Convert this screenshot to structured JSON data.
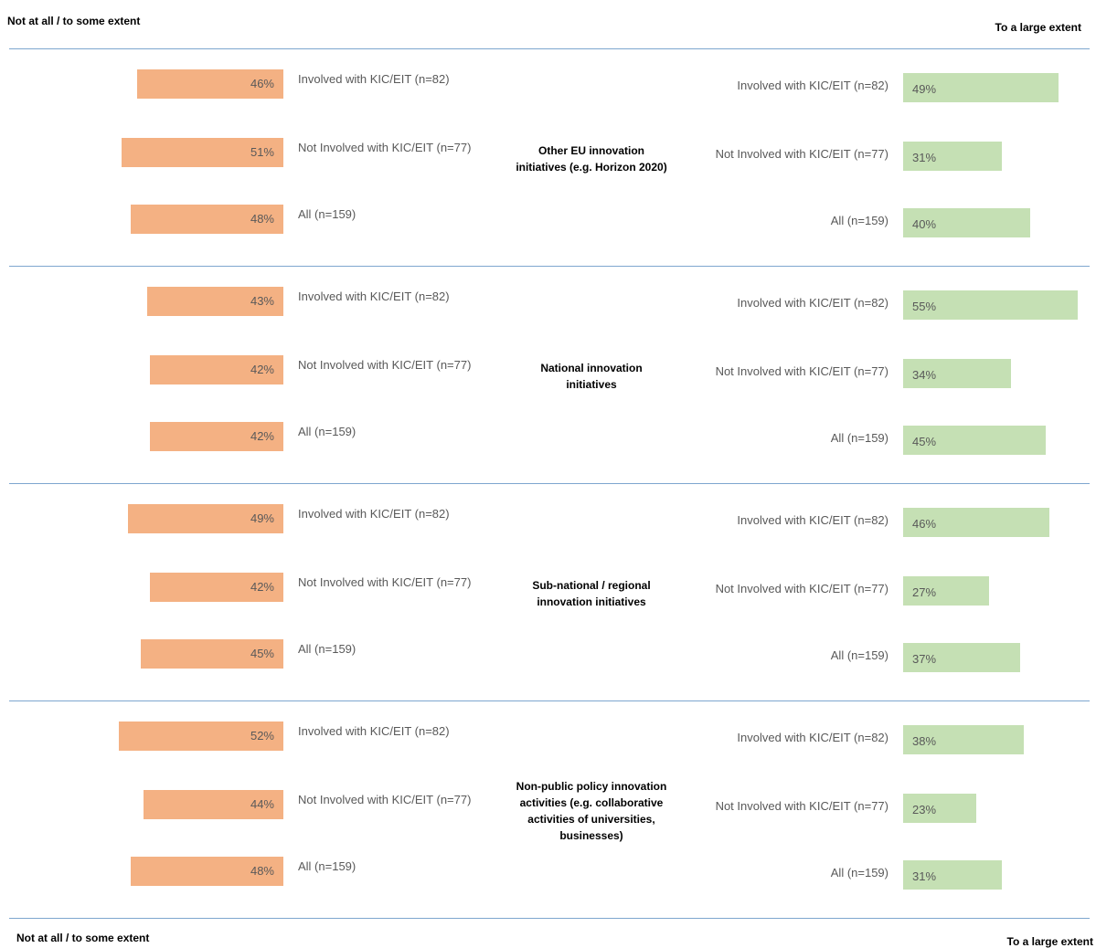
{
  "header": {
    "left_label": "Not at all / to some extent",
    "right_label": "To a large extent"
  },
  "footer": {
    "left_label": "Not at all / to some extent",
    "right_label": "To a large extent"
  },
  "colors": {
    "left_bar": "#f4b183",
    "right_bar": "#c5e0b4",
    "divider": "#7ea6cf"
  },
  "chart_data": {
    "type": "bar",
    "orientation": "diverging-horizontal",
    "series": [
      {
        "name": "Not at all / to some extent",
        "side": "left"
      },
      {
        "name": "To a large extent",
        "side": "right"
      }
    ],
    "categories": [
      {
        "label": "Other EU innovation initiatives (e.g. Horizon 2020)",
        "rows": [
          {
            "group": "Involved with KIC/EIT (n=82)",
            "left": 46,
            "right": 49
          },
          {
            "group": "Not Involved with KIC/EIT (n=77)",
            "left": 51,
            "right": 31
          },
          {
            "group": "All (n=159)",
            "left": 48,
            "right": 40
          }
        ]
      },
      {
        "label": "National innovation initiatives",
        "rows": [
          {
            "group": "Involved with KIC/EIT (n=82)",
            "left": 43,
            "right": 55
          },
          {
            "group": "Not Involved with KIC/EIT (n=77)",
            "left": 42,
            "right": 34
          },
          {
            "group": "All (n=159)",
            "left": 42,
            "right": 45
          }
        ]
      },
      {
        "label": "Sub-national / regional innovation initiatives",
        "rows": [
          {
            "group": "Involved with KIC/EIT (n=82)",
            "left": 49,
            "right": 46
          },
          {
            "group": "Not Involved with KIC/EIT (n=77)",
            "left": 42,
            "right": 27
          },
          {
            "group": "All (n=159)",
            "left": 45,
            "right": 37
          }
        ]
      },
      {
        "label": "Non-public policy innovation activities (e.g. collaborative activities of universities, businesses)",
        "rows": [
          {
            "group": "Involved with KIC/EIT (n=82)",
            "left": 52,
            "right": 38
          },
          {
            "group": "Not Involved with KIC/EIT (n=77)",
            "left": 44,
            "right": 23
          },
          {
            "group": "All (n=159)",
            "left": 48,
            "right": 31
          }
        ]
      }
    ],
    "unit": "%",
    "xlim": [
      0,
      60
    ]
  }
}
